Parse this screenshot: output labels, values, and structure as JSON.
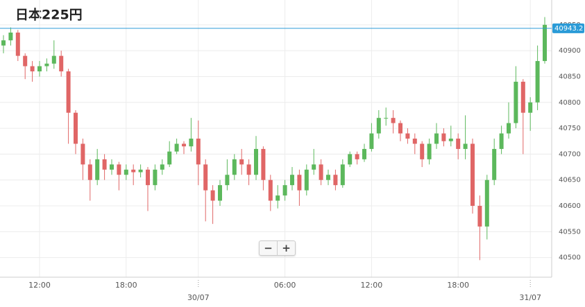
{
  "chart_data": {
    "type": "candlestick",
    "title": "日本225円",
    "categories": [
      null,
      null,
      null,
      null,
      null,
      "12:00",
      null,
      null,
      null,
      null,
      null,
      null,
      null,
      null,
      null,
      null,
      null,
      "18:00",
      null,
      null,
      null,
      null,
      null,
      null,
      null,
      null,
      null,
      "30/07",
      null,
      null,
      null,
      null,
      null,
      null,
      null,
      null,
      null,
      null,
      null,
      "06:00",
      null,
      null,
      null,
      null,
      null,
      null,
      null,
      null,
      null,
      null,
      null,
      "12:00",
      null,
      null,
      null,
      null,
      null,
      null,
      null,
      null,
      null,
      null,
      null,
      "18:00",
      null,
      null,
      null,
      null,
      null,
      null,
      null,
      null,
      null,
      "31/07",
      null,
      null
    ],
    "open": [
      40910,
      40920,
      40935,
      40890,
      40870,
      40860,
      40870,
      40875,
      40890,
      40860,
      40780,
      40720,
      40680,
      40650,
      40690,
      40670,
      40680,
      40660,
      40670,
      40665,
      40670,
      40640,
      40670,
      40680,
      40705,
      40720,
      40715,
      40730,
      40680,
      40630,
      40610,
      40640,
      40660,
      40690,
      40680,
      40660,
      40710,
      40650,
      40610,
      40620,
      40640,
      40660,
      40630,
      40670,
      40680,
      40650,
      40660,
      40640,
      40680,
      40700,
      40690,
      40710,
      40740,
      40770,
      40770,
      40760,
      40740,
      40730,
      40720,
      40690,
      40720,
      40740,
      40725,
      40730,
      40710,
      40720,
      40600,
      40560,
      40650,
      40710,
      40740,
      40760,
      40840,
      40780,
      40800,
      40880
    ],
    "high": [
      40930,
      40945,
      40940,
      40895,
      40880,
      40880,
      40885,
      40920,
      40900,
      40865,
      40785,
      40730,
      40690,
      40710,
      40700,
      40690,
      40685,
      40680,
      40680,
      40680,
      40675,
      40680,
      40690,
      40725,
      40730,
      40725,
      40770,
      40765,
      40690,
      40640,
      40650,
      40690,
      40700,
      40710,
      40690,
      40735,
      40715,
      40660,
      40640,
      40650,
      40675,
      40670,
      40680,
      40710,
      40690,
      40670,
      40670,
      40690,
      40705,
      40705,
      40720,
      40760,
      40785,
      40790,
      40785,
      40765,
      40750,
      40740,
      40725,
      40730,
      40760,
      40750,
      40755,
      40740,
      40775,
      40730,
      40620,
      40660,
      40730,
      40755,
      40800,
      40870,
      40845,
      40810,
      40910,
      40965
    ],
    "low": [
      40895,
      40910,
      40880,
      40845,
      40840,
      40850,
      40860,
      40865,
      40850,
      40720,
      40700,
      40650,
      40610,
      40640,
      40650,
      40660,
      40630,
      40650,
      40640,
      40655,
      40590,
      40630,
      40660,
      40675,
      40700,
      40700,
      40705,
      40640,
      40570,
      40565,
      40600,
      40630,
      40650,
      40660,
      40640,
      40650,
      40630,
      40590,
      40595,
      40610,
      40630,
      40600,
      40620,
      40660,
      40640,
      40640,
      40630,
      40635,
      40675,
      40680,
      40685,
      40705,
      40730,
      40755,
      40740,
      40725,
      40720,
      40700,
      40675,
      40680,
      40710,
      40715,
      40715,
      40690,
      40690,
      40585,
      40495,
      40535,
      40640,
      40700,
      40730,
      40750,
      40700,
      40745,
      40785,
      40875
    ],
    "close": [
      40920,
      40935,
      40890,
      40870,
      40860,
      40870,
      40875,
      40890,
      40860,
      40780,
      40720,
      40680,
      40650,
      40690,
      40670,
      40680,
      40660,
      40670,
      40665,
      40670,
      40640,
      40670,
      40680,
      40705,
      40720,
      40715,
      40730,
      40680,
      40630,
      40610,
      40640,
      40660,
      40690,
      40680,
      40660,
      40710,
      40650,
      40610,
      40620,
      40640,
      40660,
      40630,
      40670,
      40680,
      40650,
      40660,
      40640,
      40680,
      40700,
      40690,
      40710,
      40740,
      40770,
      40770,
      40760,
      40740,
      40730,
      40720,
      40690,
      40720,
      40740,
      40725,
      40730,
      40710,
      40720,
      40600,
      40560,
      40650,
      40710,
      40740,
      40760,
      40840,
      40780,
      40800,
      40880,
      40950
    ],
    "up_color": "#5cb85c",
    "down_color": "#e06666",
    "ylim": [
      40462,
      40998
    ],
    "yticks": [
      40500,
      40550,
      40600,
      40650,
      40700,
      40750,
      40800,
      40850,
      40900,
      40950
    ],
    "grid": true,
    "last_price": 40943.2,
    "last_price_color": "#2a9bd7"
  },
  "controls": [
    "−",
    "+"
  ]
}
